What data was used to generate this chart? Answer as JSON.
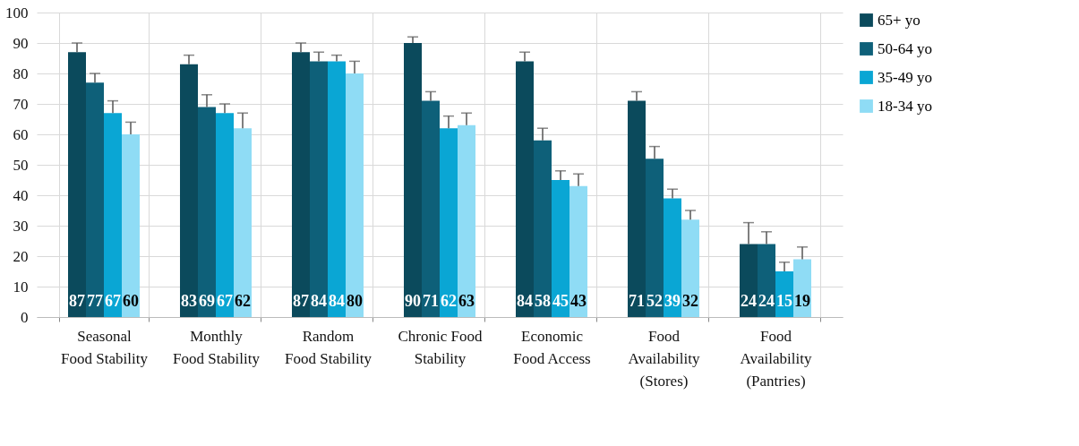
{
  "chart_data": {
    "type": "bar",
    "categories": [
      "Seasonal\nFood Stability",
      "Monthly\nFood Stability",
      "Random\nFood Stability",
      "Chronic Food\nStability",
      "Economic\nFood Access",
      "Food\nAvailability\n(Stores)",
      "Food\nAvailability\n(Pantries)"
    ],
    "series": [
      {
        "name": "65+ yo",
        "color": "#0b4a5c",
        "values": [
          87,
          83,
          87,
          90,
          84,
          71,
          24
        ],
        "errors": [
          [
            87,
            90
          ],
          [
            83,
            86
          ],
          [
            87,
            90
          ],
          [
            90,
            92
          ],
          [
            84,
            87
          ],
          [
            71,
            74
          ],
          [
            24,
            31
          ]
        ]
      },
      {
        "name": "50-64 yo",
        "color": "#0e6079",
        "values": [
          77,
          69,
          84,
          71,
          58,
          52,
          24
        ],
        "errors": [
          [
            77,
            80
          ],
          [
            69,
            73
          ],
          [
            84,
            87
          ],
          [
            71,
            74
          ],
          [
            58,
            62
          ],
          [
            52,
            56
          ],
          [
            24,
            28
          ]
        ]
      },
      {
        "name": "35-49 yo",
        "color": "#0aa6d4",
        "values": [
          67,
          67,
          84,
          62,
          45,
          39,
          15
        ],
        "errors": [
          [
            67,
            71
          ],
          [
            67,
            70
          ],
          [
            84,
            86
          ],
          [
            62,
            66
          ],
          [
            45,
            48
          ],
          [
            39,
            42
          ],
          [
            15,
            18
          ]
        ]
      },
      {
        "name": "18-34 yo",
        "color": "#8fdcf5",
        "values": [
          60,
          62,
          80,
          63,
          43,
          32,
          19
        ],
        "errors": [
          [
            60,
            64
          ],
          [
            62,
            67
          ],
          [
            80,
            84
          ],
          [
            63,
            67
          ],
          [
            43,
            47
          ],
          [
            32,
            35
          ],
          [
            19,
            23
          ]
        ]
      }
    ],
    "ylim": [
      0,
      100
    ],
    "yticks": [
      0,
      10,
      20,
      30,
      40,
      50,
      60,
      70,
      80,
      90,
      100
    ],
    "grid": true,
    "legend": "right",
    "data_labels": true
  }
}
